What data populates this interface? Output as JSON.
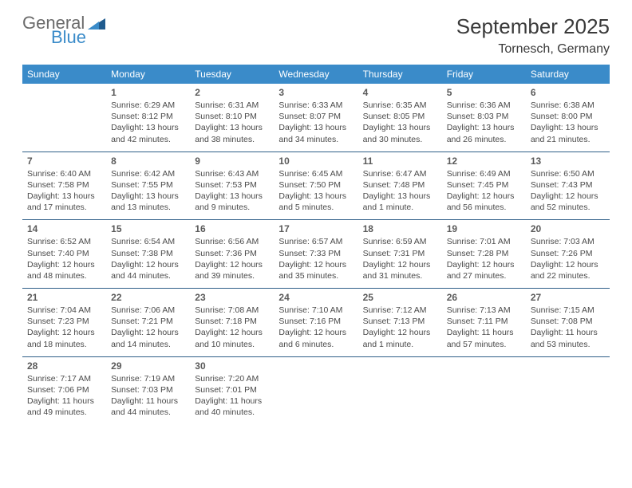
{
  "logo": {
    "text1": "General",
    "text2": "Blue",
    "color1": "#6b6b6b",
    "color2": "#3a8bc9",
    "tri_fill": "#1f5b8e"
  },
  "header": {
    "title": "September 2025",
    "location": "Tornesch, Germany"
  },
  "style": {
    "header_bg": "#3a8bc9",
    "header_text": "#ffffff",
    "row_border": "#2f5f88",
    "daynum_color": "#5a5a5a",
    "text_color": "#4a4a4a",
    "title_color": "#3a3a3a",
    "font_family": "Arial",
    "title_fontsize": 26,
    "dow_fontsize": 12,
    "cell_fontsize": 10.5
  },
  "days_of_week": [
    "Sunday",
    "Monday",
    "Tuesday",
    "Wednesday",
    "Thursday",
    "Friday",
    "Saturday"
  ],
  "weeks": [
    [
      {
        "n": "",
        "sr": "",
        "ss": "",
        "dl": ""
      },
      {
        "n": "1",
        "sr": "Sunrise: 6:29 AM",
        "ss": "Sunset: 8:12 PM",
        "dl": "Daylight: 13 hours and 42 minutes."
      },
      {
        "n": "2",
        "sr": "Sunrise: 6:31 AM",
        "ss": "Sunset: 8:10 PM",
        "dl": "Daylight: 13 hours and 38 minutes."
      },
      {
        "n": "3",
        "sr": "Sunrise: 6:33 AM",
        "ss": "Sunset: 8:07 PM",
        "dl": "Daylight: 13 hours and 34 minutes."
      },
      {
        "n": "4",
        "sr": "Sunrise: 6:35 AM",
        "ss": "Sunset: 8:05 PM",
        "dl": "Daylight: 13 hours and 30 minutes."
      },
      {
        "n": "5",
        "sr": "Sunrise: 6:36 AM",
        "ss": "Sunset: 8:03 PM",
        "dl": "Daylight: 13 hours and 26 minutes."
      },
      {
        "n": "6",
        "sr": "Sunrise: 6:38 AM",
        "ss": "Sunset: 8:00 PM",
        "dl": "Daylight: 13 hours and 21 minutes."
      }
    ],
    [
      {
        "n": "7",
        "sr": "Sunrise: 6:40 AM",
        "ss": "Sunset: 7:58 PM",
        "dl": "Daylight: 13 hours and 17 minutes."
      },
      {
        "n": "8",
        "sr": "Sunrise: 6:42 AM",
        "ss": "Sunset: 7:55 PM",
        "dl": "Daylight: 13 hours and 13 minutes."
      },
      {
        "n": "9",
        "sr": "Sunrise: 6:43 AM",
        "ss": "Sunset: 7:53 PM",
        "dl": "Daylight: 13 hours and 9 minutes."
      },
      {
        "n": "10",
        "sr": "Sunrise: 6:45 AM",
        "ss": "Sunset: 7:50 PM",
        "dl": "Daylight: 13 hours and 5 minutes."
      },
      {
        "n": "11",
        "sr": "Sunrise: 6:47 AM",
        "ss": "Sunset: 7:48 PM",
        "dl": "Daylight: 13 hours and 1 minute."
      },
      {
        "n": "12",
        "sr": "Sunrise: 6:49 AM",
        "ss": "Sunset: 7:45 PM",
        "dl": "Daylight: 12 hours and 56 minutes."
      },
      {
        "n": "13",
        "sr": "Sunrise: 6:50 AM",
        "ss": "Sunset: 7:43 PM",
        "dl": "Daylight: 12 hours and 52 minutes."
      }
    ],
    [
      {
        "n": "14",
        "sr": "Sunrise: 6:52 AM",
        "ss": "Sunset: 7:40 PM",
        "dl": "Daylight: 12 hours and 48 minutes."
      },
      {
        "n": "15",
        "sr": "Sunrise: 6:54 AM",
        "ss": "Sunset: 7:38 PM",
        "dl": "Daylight: 12 hours and 44 minutes."
      },
      {
        "n": "16",
        "sr": "Sunrise: 6:56 AM",
        "ss": "Sunset: 7:36 PM",
        "dl": "Daylight: 12 hours and 39 minutes."
      },
      {
        "n": "17",
        "sr": "Sunrise: 6:57 AM",
        "ss": "Sunset: 7:33 PM",
        "dl": "Daylight: 12 hours and 35 minutes."
      },
      {
        "n": "18",
        "sr": "Sunrise: 6:59 AM",
        "ss": "Sunset: 7:31 PM",
        "dl": "Daylight: 12 hours and 31 minutes."
      },
      {
        "n": "19",
        "sr": "Sunrise: 7:01 AM",
        "ss": "Sunset: 7:28 PM",
        "dl": "Daylight: 12 hours and 27 minutes."
      },
      {
        "n": "20",
        "sr": "Sunrise: 7:03 AM",
        "ss": "Sunset: 7:26 PM",
        "dl": "Daylight: 12 hours and 22 minutes."
      }
    ],
    [
      {
        "n": "21",
        "sr": "Sunrise: 7:04 AM",
        "ss": "Sunset: 7:23 PM",
        "dl": "Daylight: 12 hours and 18 minutes."
      },
      {
        "n": "22",
        "sr": "Sunrise: 7:06 AM",
        "ss": "Sunset: 7:21 PM",
        "dl": "Daylight: 12 hours and 14 minutes."
      },
      {
        "n": "23",
        "sr": "Sunrise: 7:08 AM",
        "ss": "Sunset: 7:18 PM",
        "dl": "Daylight: 12 hours and 10 minutes."
      },
      {
        "n": "24",
        "sr": "Sunrise: 7:10 AM",
        "ss": "Sunset: 7:16 PM",
        "dl": "Daylight: 12 hours and 6 minutes."
      },
      {
        "n": "25",
        "sr": "Sunrise: 7:12 AM",
        "ss": "Sunset: 7:13 PM",
        "dl": "Daylight: 12 hours and 1 minute."
      },
      {
        "n": "26",
        "sr": "Sunrise: 7:13 AM",
        "ss": "Sunset: 7:11 PM",
        "dl": "Daylight: 11 hours and 57 minutes."
      },
      {
        "n": "27",
        "sr": "Sunrise: 7:15 AM",
        "ss": "Sunset: 7:08 PM",
        "dl": "Daylight: 11 hours and 53 minutes."
      }
    ],
    [
      {
        "n": "28",
        "sr": "Sunrise: 7:17 AM",
        "ss": "Sunset: 7:06 PM",
        "dl": "Daylight: 11 hours and 49 minutes."
      },
      {
        "n": "29",
        "sr": "Sunrise: 7:19 AM",
        "ss": "Sunset: 7:03 PM",
        "dl": "Daylight: 11 hours and 44 minutes."
      },
      {
        "n": "30",
        "sr": "Sunrise: 7:20 AM",
        "ss": "Sunset: 7:01 PM",
        "dl": "Daylight: 11 hours and 40 minutes."
      },
      {
        "n": "",
        "sr": "",
        "ss": "",
        "dl": ""
      },
      {
        "n": "",
        "sr": "",
        "ss": "",
        "dl": ""
      },
      {
        "n": "",
        "sr": "",
        "ss": "",
        "dl": ""
      },
      {
        "n": "",
        "sr": "",
        "ss": "",
        "dl": ""
      }
    ]
  ]
}
